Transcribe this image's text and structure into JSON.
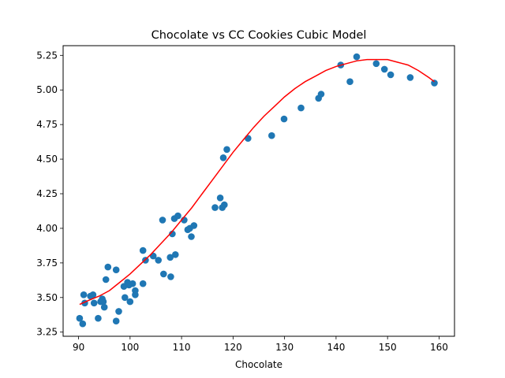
{
  "chart_data": {
    "type": "scatter",
    "title": "Chocolate vs CC Cookies Cubic Model",
    "xlabel": "Chocolate",
    "ylabel": "",
    "xlim": [
      87,
      163
    ],
    "ylim": [
      3.22,
      5.32
    ],
    "xticks": [
      90,
      100,
      110,
      120,
      130,
      140,
      150,
      160
    ],
    "yticks": [
      3.25,
      3.5,
      3.75,
      4.0,
      4.25,
      4.5,
      4.75,
      5.0,
      5.25
    ],
    "ytick_labels": [
      "3.25",
      "3.50",
      "3.75",
      "4.00",
      "4.25",
      "4.50",
      "4.75",
      "5.00",
      "5.25"
    ],
    "grid": false,
    "legend": "none",
    "colors": {
      "points": "#1f77b4",
      "model": "#ff0000"
    },
    "series": [
      {
        "kind": "scatter",
        "points": [
          [
            90.2,
            3.35
          ],
          [
            90.8,
            3.31
          ],
          [
            91.0,
            3.52
          ],
          [
            91.2,
            3.46
          ],
          [
            92.3,
            3.51
          ],
          [
            92.8,
            3.52
          ],
          [
            93.0,
            3.46
          ],
          [
            93.8,
            3.35
          ],
          [
            94.3,
            3.47
          ],
          [
            94.6,
            3.49
          ],
          [
            94.8,
            3.47
          ],
          [
            95.0,
            3.43
          ],
          [
            95.3,
            3.63
          ],
          [
            95.7,
            3.72
          ],
          [
            97.3,
            3.7
          ],
          [
            97.3,
            3.33
          ],
          [
            97.8,
            3.4
          ],
          [
            98.8,
            3.58
          ],
          [
            99.0,
            3.5
          ],
          [
            99.5,
            3.61
          ],
          [
            99.8,
            3.59
          ],
          [
            100.0,
            3.47
          ],
          [
            100.5,
            3.6
          ],
          [
            101.0,
            3.55
          ],
          [
            101.0,
            3.52
          ],
          [
            102.5,
            3.6
          ],
          [
            102.5,
            3.84
          ],
          [
            103.0,
            3.77
          ],
          [
            104.5,
            3.8
          ],
          [
            105.5,
            3.77
          ],
          [
            106.3,
            4.06
          ],
          [
            106.5,
            3.67
          ],
          [
            107.8,
            3.79
          ],
          [
            107.9,
            3.65
          ],
          [
            108.2,
            3.96
          ],
          [
            108.6,
            4.07
          ],
          [
            108.8,
            3.81
          ],
          [
            109.3,
            4.09
          ],
          [
            110.5,
            4.06
          ],
          [
            111.2,
            3.99
          ],
          [
            111.6,
            4.0
          ],
          [
            111.9,
            3.94
          ],
          [
            112.4,
            4.02
          ],
          [
            116.5,
            4.15
          ],
          [
            117.5,
            4.22
          ],
          [
            117.9,
            4.15
          ],
          [
            118.3,
            4.17
          ],
          [
            118.1,
            4.51
          ],
          [
            118.8,
            4.57
          ],
          [
            122.9,
            4.65
          ],
          [
            127.5,
            4.67
          ],
          [
            129.9,
            4.79
          ],
          [
            133.2,
            4.87
          ],
          [
            136.6,
            4.94
          ],
          [
            137.1,
            4.97
          ],
          [
            140.9,
            5.18
          ],
          [
            142.7,
            5.06
          ],
          [
            144.0,
            5.24
          ],
          [
            147.8,
            5.19
          ],
          [
            149.4,
            5.15
          ],
          [
            150.6,
            5.11
          ],
          [
            154.4,
            5.09
          ],
          [
            159.1,
            5.05
          ]
        ]
      },
      {
        "kind": "line",
        "points": [
          [
            90.2,
            3.45
          ],
          [
            92,
            3.48
          ],
          [
            94,
            3.51
          ],
          [
            96,
            3.55
          ],
          [
            98,
            3.61
          ],
          [
            100,
            3.67
          ],
          [
            102,
            3.74
          ],
          [
            104,
            3.81
          ],
          [
            106,
            3.89
          ],
          [
            108,
            3.97
          ],
          [
            110,
            4.06
          ],
          [
            112,
            4.15
          ],
          [
            114,
            4.25
          ],
          [
            116,
            4.35
          ],
          [
            118,
            4.45
          ],
          [
            120,
            4.55
          ],
          [
            122,
            4.64
          ],
          [
            124,
            4.73
          ],
          [
            126,
            4.81
          ],
          [
            128,
            4.88
          ],
          [
            130,
            4.95
          ],
          [
            132,
            5.01
          ],
          [
            134,
            5.06
          ],
          [
            136,
            5.1
          ],
          [
            138,
            5.14
          ],
          [
            140,
            5.17
          ],
          [
            142,
            5.19
          ],
          [
            144,
            5.21
          ],
          [
            146,
            5.22
          ],
          [
            148,
            5.22
          ],
          [
            150,
            5.22
          ],
          [
            152,
            5.2
          ],
          [
            154,
            5.18
          ],
          [
            156,
            5.14
          ],
          [
            158,
            5.09
          ],
          [
            159.1,
            5.06
          ]
        ]
      }
    ]
  }
}
